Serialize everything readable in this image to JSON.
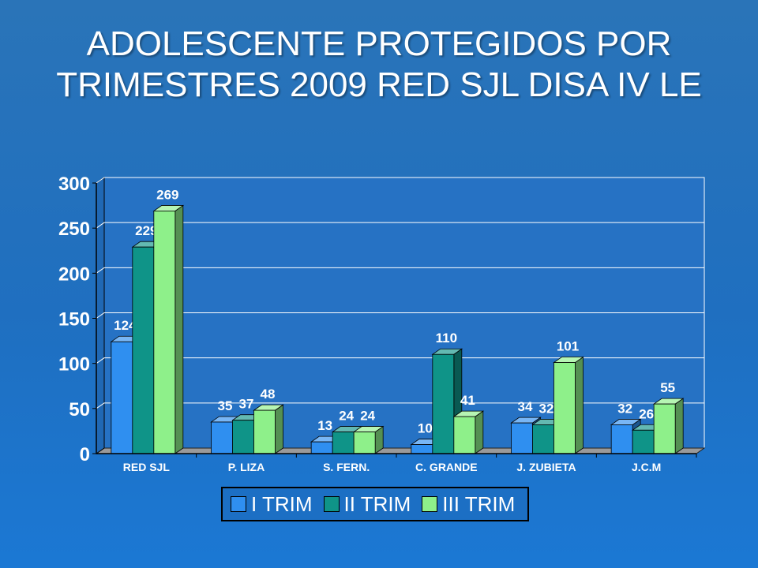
{
  "slide": {
    "title": "ADOLESCENTE PROTEGIDOS POR TRIMESTRES 2009 RED SJL DISA IV LE"
  },
  "chart_data": {
    "type": "bar",
    "categories": [
      "RED SJL",
      "P. LIZA",
      "S. FERN.",
      "C. GRANDE",
      "J. ZUBIETA",
      "J.C.M"
    ],
    "series": [
      {
        "name": "I TRIM",
        "color": "#2f8ff0",
        "values": [
          124,
          35,
          13,
          10,
          34,
          32
        ]
      },
      {
        "name": "II TRIM",
        "color": "#0f9488",
        "values": [
          229,
          37,
          24,
          110,
          32,
          26
        ]
      },
      {
        "name": "III TRIM",
        "color": "#8ef08a",
        "values": [
          269,
          48,
          24,
          41,
          101,
          55
        ]
      }
    ],
    "ylim": [
      0,
      300
    ],
    "yticks": [
      0,
      50,
      100,
      150,
      200,
      250,
      300
    ],
    "grid": true,
    "legend_position": "bottom",
    "three_d": true
  }
}
